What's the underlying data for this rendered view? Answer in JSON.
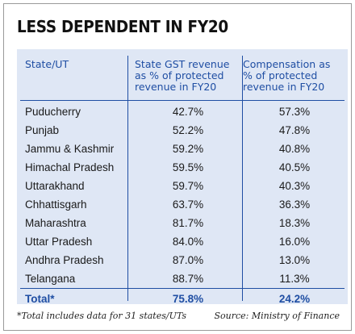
{
  "chart_data": {
    "type": "table",
    "title": "LESS DEPENDENT IN FY20",
    "columns": [
      [
        "State/UT"
      ],
      [
        "State GST revenue",
        "as % of protected",
        "revenue in FY20"
      ],
      [
        "Compensation as",
        "% of protected",
        "revenue in FY20"
      ]
    ],
    "rows": [
      {
        "state": "Puducherry",
        "gst": "42.7%",
        "comp": "57.3%"
      },
      {
        "state": "Punjab",
        "gst": "52.2%",
        "comp": "47.8%"
      },
      {
        "state": "Jammu & Kashmir",
        "gst": "59.2%",
        "comp": "40.8%"
      },
      {
        "state": "Himachal Pradesh",
        "gst": "59.5%",
        "comp": "40.5%"
      },
      {
        "state": "Uttarakhand",
        "gst": "59.7%",
        "comp": "40.3%"
      },
      {
        "state": "Chhattisgarh",
        "gst": "63.7%",
        "comp": "36.3%"
      },
      {
        "state": "Maharashtra",
        "gst": "81.7%",
        "comp": "18.3%"
      },
      {
        "state": "Uttar Pradesh",
        "gst": "84.0%",
        "comp": "16.0%"
      },
      {
        "state": "Andhra Pradesh",
        "gst": "87.0%",
        "comp": "13.0%"
      },
      {
        "state": "Telangana",
        "gst": "88.7%",
        "comp": "11.3%"
      }
    ],
    "total": {
      "state": "Total*",
      "gst": "75.8%",
      "comp": "24.2%"
    },
    "footnote": "*Total includes data for 31 states/UTs",
    "source": "Source: Ministry of Finance"
  },
  "colors": {
    "accent": "#1f4ea3",
    "panel": "#dfe7f5"
  }
}
